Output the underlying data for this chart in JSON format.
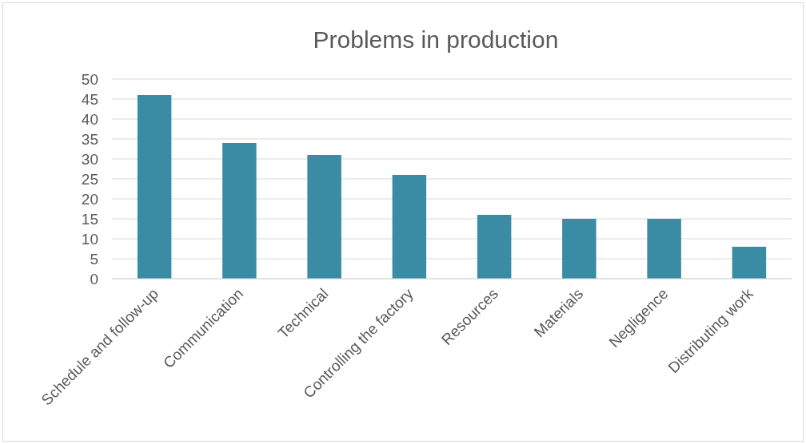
{
  "chart_data": {
    "type": "bar",
    "title": "Problems in production",
    "categories": [
      "Schedule and follow-up",
      "Communication",
      "Technical",
      "Controlling the factory",
      "Resources",
      "Materials",
      "Negligence",
      "Distributing work"
    ],
    "values": [
      46,
      34,
      31,
      26,
      16,
      15,
      15,
      8
    ],
    "color": "#3a8ca4",
    "ylim": [
      0,
      50
    ],
    "yticks": [
      0,
      5,
      10,
      15,
      20,
      25,
      30,
      35,
      40,
      45,
      50
    ],
    "grid": "y"
  }
}
